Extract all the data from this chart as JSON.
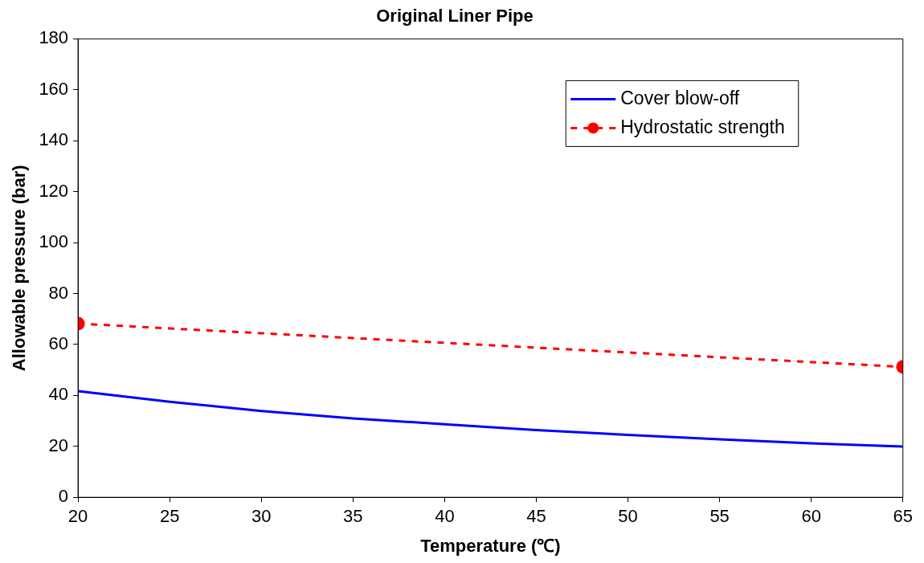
{
  "chart_data": {
    "type": "line",
    "title": "Original Liner Pipe",
    "xlabel": "Temperature (℃)",
    "ylabel": "Allowable pressure (bar)",
    "xlim": [
      20,
      65
    ],
    "xticks": [
      20,
      25,
      30,
      35,
      40,
      45,
      50,
      55,
      60,
      65
    ],
    "ylim": [
      0,
      180
    ],
    "yticks": [
      0,
      20,
      40,
      60,
      80,
      100,
      120,
      140,
      160,
      180
    ],
    "grid": false,
    "legend": "top right",
    "series": [
      {
        "name": "Cover blow-off",
        "color": "#0000ff",
        "line_style": "solid",
        "marker": "none",
        "x": [
          20,
          25,
          30,
          35,
          40,
          45,
          50,
          55,
          60,
          65
        ],
        "values": [
          41.7,
          37.5,
          33.9,
          31,
          28.7,
          26.4,
          24.5,
          22.8,
          21.2,
          19.9
        ]
      },
      {
        "name": "Hydrostatic strength",
        "color": "#ff0000",
        "line_style": "dashed",
        "marker": "circle",
        "x": [
          20,
          65
        ],
        "values": [
          68.2,
          51.2
        ]
      }
    ]
  }
}
